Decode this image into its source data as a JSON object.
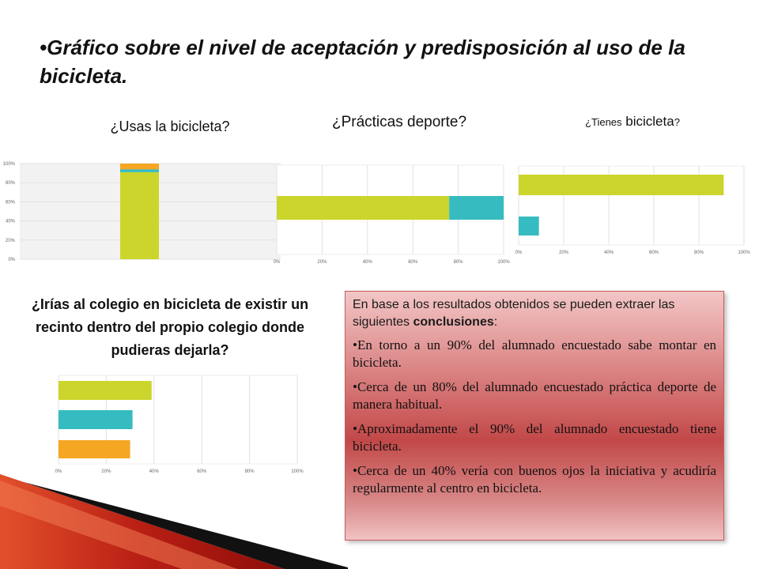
{
  "title": "•Gráfico sobre el nivel de aceptación y predisposición al uso de la bicicleta.",
  "questions": {
    "q1": "¿Usas la bicicleta?",
    "q2": "¿Prácticas deporte?",
    "q3_prefix": "¿Tienes",
    "q3_word": " bicicleta",
    "q3_suffix": "?",
    "q4": "¿Irías al colegio en bicicleta de existir un recinto dentro del propio colegio donde pudieras dejarla?"
  },
  "conclusions": {
    "intro_pre": "En base a los resultados obtenidos se pueden extraer las siguientes ",
    "intro_bold": "conclusiones",
    "intro_post": ":",
    "bullets": [
      "•En torno a un 90% del alumnado encuestado sabe montar en bicicleta.",
      "Cerca de un 80% del alumnado encuestado práctica deporte de manera habitual.",
      "Aproximadamente el 90% del alumnado encuestado tiene bicicleta.",
      "Cerca de un 40% vería con buenos ojos la iniciativa y acudiría regularmente al centro en bicicleta."
    ]
  },
  "colors": {
    "green": "#ccd52b",
    "teal": "#36bcc0",
    "orange": "#f5a623",
    "grid": "#e1e1e1",
    "panel": "#f2f2f2"
  },
  "chart_data": [
    {
      "type": "bar",
      "orientation": "vertical-stacked",
      "title": "¿Usas la bicicleta?",
      "yticks": [
        "100%",
        "80%",
        "60%",
        "40%",
        "20%",
        "0%"
      ],
      "ylim": [
        0,
        100
      ],
      "series": [
        {
          "values": [
            91
          ]
        },
        {
          "values": [
            3
          ]
        },
        {
          "values": [
            6
          ]
        }
      ]
    },
    {
      "type": "bar",
      "orientation": "horizontal-stacked",
      "title": "¿Prácticas deporte?",
      "xticks": [
        "0%",
        "20%",
        "40%",
        "60%",
        "80%",
        "100%"
      ],
      "xlim": [
        0,
        100
      ],
      "series": [
        {
          "values": [
            76
          ]
        },
        {
          "values": [
            24
          ]
        }
      ]
    },
    {
      "type": "bar",
      "orientation": "horizontal",
      "title": "¿Tienes bicicleta?",
      "xticks": [
        "0%",
        "20%",
        "40%",
        "60%",
        "80%",
        "100%"
      ],
      "xlim": [
        0,
        100
      ],
      "values": [
        91,
        9
      ]
    },
    {
      "type": "bar",
      "orientation": "horizontal",
      "title": "¿Irías al colegio en bicicleta de existir un recinto dentro del propio colegio donde pudieras dejarla?",
      "xticks": [
        "0%",
        "20%",
        "40%",
        "60%",
        "80%",
        "100%"
      ],
      "xlim": [
        0,
        100
      ],
      "values": [
        39,
        31,
        30
      ]
    }
  ]
}
